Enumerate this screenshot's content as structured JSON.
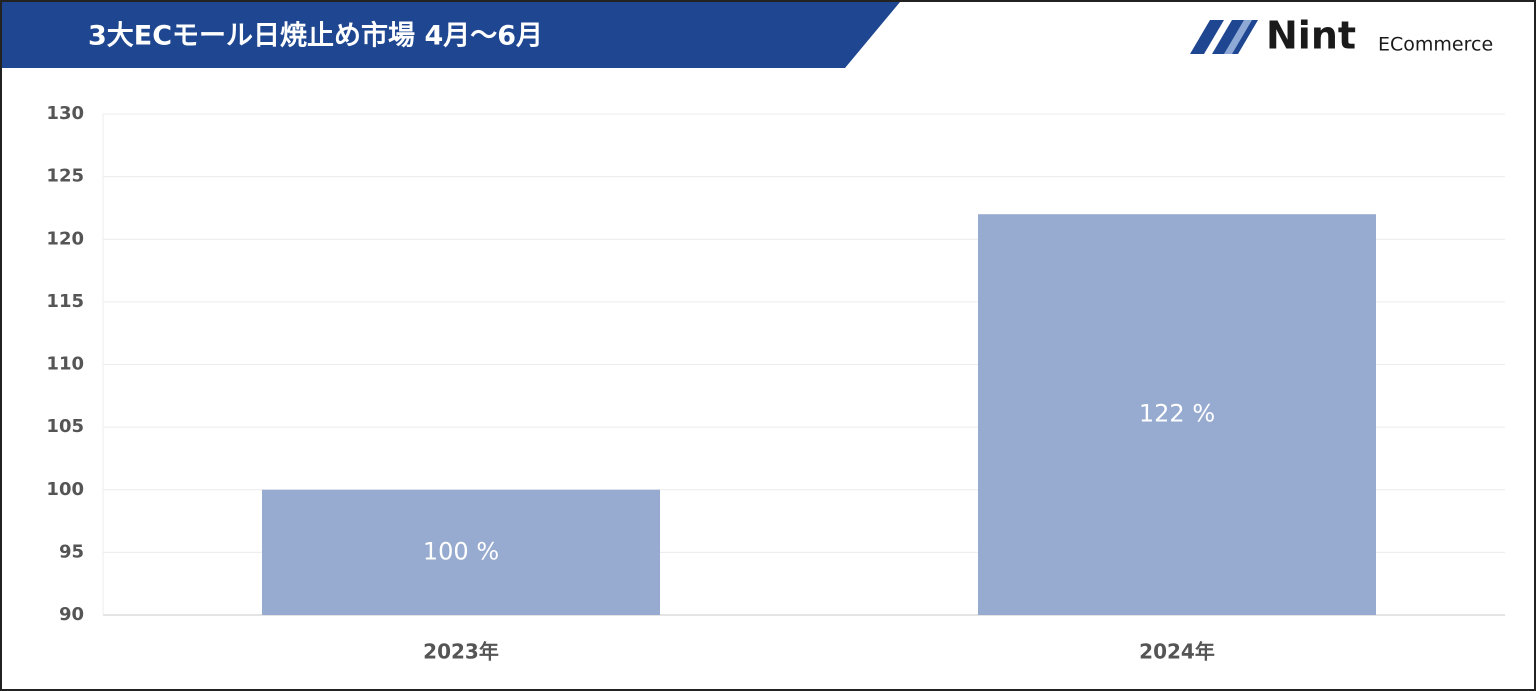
{
  "chart_data": {
    "type": "bar",
    "title": "3大ECモール日焼止め市場 4月～6月",
    "categories": [
      "2023年",
      "2024年"
    ],
    "values": [
      100,
      122
    ],
    "value_labels": [
      "100 %",
      "122 %"
    ],
    "color": "#97abd0",
    "ylim": [
      90,
      130
    ],
    "yticks": [
      90,
      95,
      100,
      105,
      110,
      115,
      120,
      125,
      130
    ],
    "grid": true
  },
  "logo": {
    "name": "Nint",
    "tagline": "ECommerce"
  }
}
